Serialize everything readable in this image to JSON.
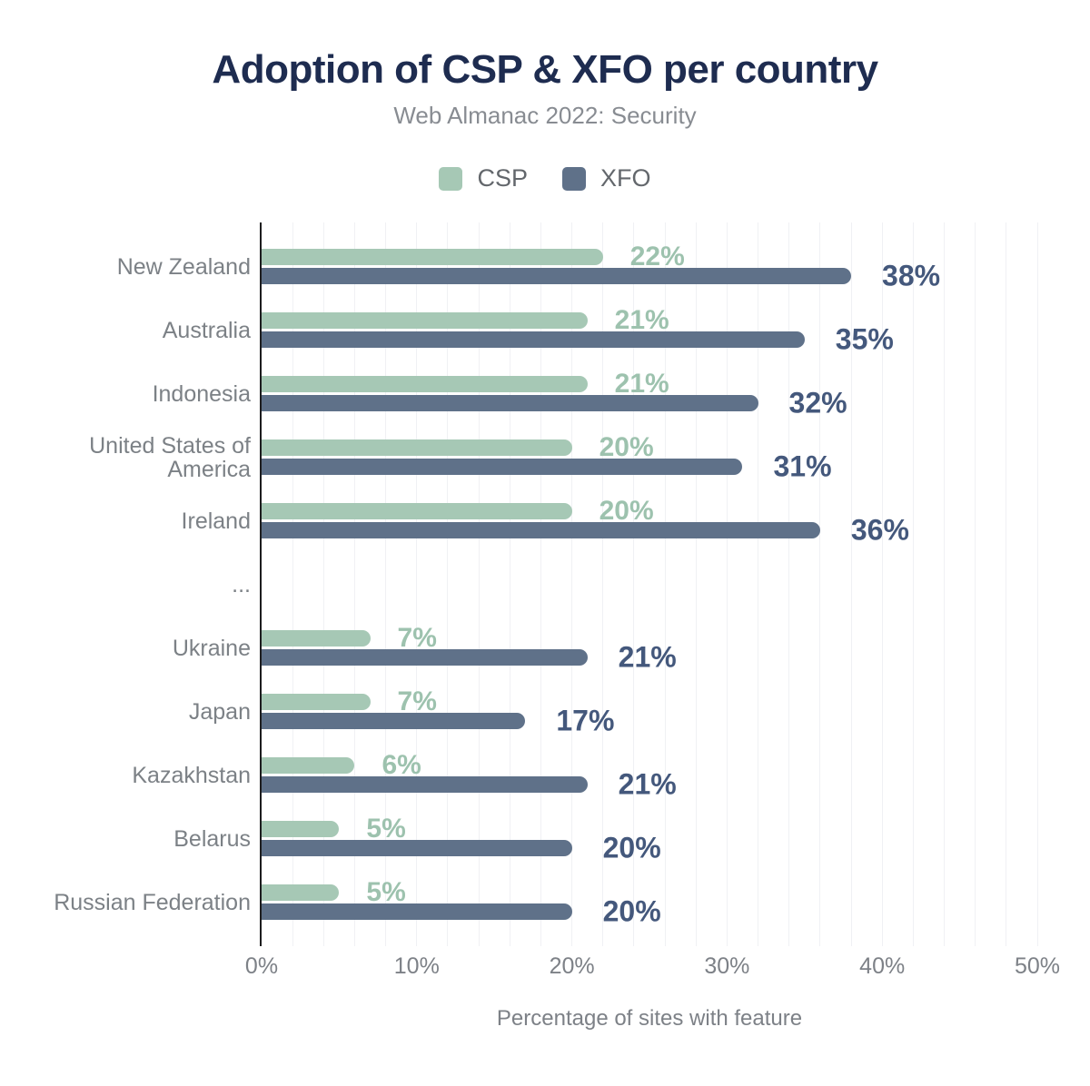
{
  "title": "Adoption of CSP & XFO per country",
  "subtitle": "Web Almanac 2022: Security",
  "colors": {
    "title": "#1e2c50",
    "subtitle": "#888c92",
    "axis_text": "#7d8187",
    "country_label": "#7c8186",
    "legend_text": "#63676c",
    "grid": "#f0f1f4",
    "axis_line": "#1d1d1f",
    "csp_bar": "#a6c8b5",
    "xfo_bar": "#5f7189",
    "csp_value_text": "#9dc2ae",
    "xfo_value_text": "#44587c"
  },
  "chart_data": {
    "type": "bar",
    "orientation": "horizontal",
    "title": "Adoption of CSP & XFO per country",
    "subtitle": "Web Almanac 2022: Security",
    "xlabel": "Percentage of sites with feature",
    "xlim": [
      0,
      50
    ],
    "xticks": [
      "0%",
      "10%",
      "20%",
      "30%",
      "40%",
      "50%"
    ],
    "xtick_values": [
      0,
      10,
      20,
      30,
      40,
      50
    ],
    "grid_step_pct": 2,
    "grid": true,
    "legend_position": "top",
    "value_suffix": "%",
    "categories": [
      "New Zealand",
      "Australia",
      "Indonesia",
      "United States of America",
      "Ireland",
      "...",
      "Ukraine",
      "Japan",
      "Kazakhstan",
      "Belarus",
      "Russian Federation"
    ],
    "series": [
      {
        "name": "CSP",
        "color": "#a6c8b5",
        "value_color": "#9dc2ae",
        "values": [
          22,
          21,
          21,
          20,
          20,
          null,
          7,
          7,
          6,
          5,
          5
        ]
      },
      {
        "name": "XFO",
        "color": "#5f7189",
        "value_color": "#44587c",
        "values": [
          38,
          35,
          32,
          31,
          36,
          null,
          21,
          17,
          21,
          20,
          20
        ]
      }
    ]
  }
}
